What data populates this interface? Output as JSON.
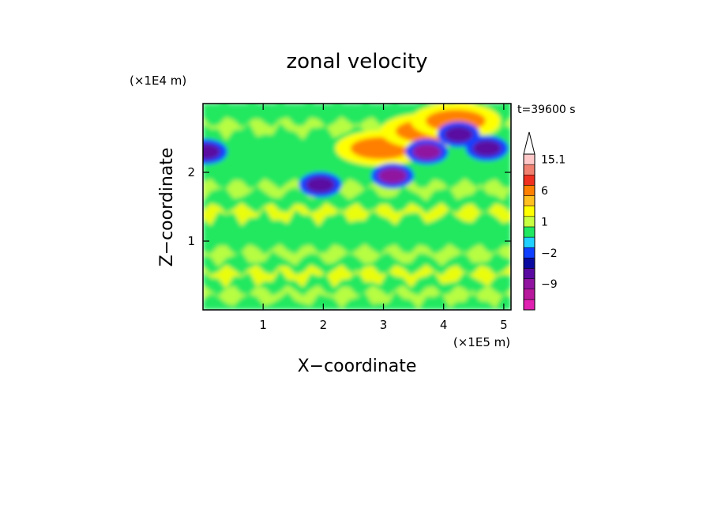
{
  "chart_data": {
    "type": "heatmap",
    "title": "zonal velocity",
    "xlabel": "X−coordinate",
    "ylabel": "Z−coordinate",
    "x_unit": "(×1E5 m)",
    "y_unit": "(×1E4 m)",
    "time_label": "t=39600 s",
    "xlim": [
      0,
      5.12
    ],
    "ylim": [
      0,
      3.0
    ],
    "xticks": [
      "1",
      "2",
      "3",
      "4",
      "5"
    ],
    "yticks": [
      "1",
      "2"
    ],
    "colorbar": {
      "labels": [
        "15.1",
        "6",
        "1",
        "−2",
        "−9"
      ],
      "levels": [
        -15,
        -12,
        -9,
        -6,
        -4,
        -2,
        -1,
        0,
        1,
        2,
        4,
        6,
        9,
        12,
        15.1
      ],
      "colors": [
        "#e020b0",
        "#b8189c",
        "#9014a0",
        "#5a0aa0",
        "#0a0aa0",
        "#1040ff",
        "#20d0ff",
        "#20e860",
        "#c8ff40",
        "#ffff00",
        "#ffc020",
        "#ff8000",
        "#f03020",
        "#f08070",
        "#ffc8c8"
      ],
      "extend_max": true
    },
    "features": [
      {
        "kind": "jet",
        "sign": "positive",
        "x": 2.95,
        "z": 2.35,
        "value": 6
      },
      {
        "kind": "jet",
        "sign": "positive",
        "x": 3.7,
        "z": 2.6,
        "value": 6
      },
      {
        "kind": "jet",
        "sign": "positive",
        "x": 4.2,
        "z": 2.75,
        "value": 6
      },
      {
        "kind": "core",
        "sign": "negative",
        "x": 3.15,
        "z": 1.95,
        "value": -9
      },
      {
        "kind": "core",
        "sign": "negative",
        "x": 3.72,
        "z": 2.3,
        "value": -9
      },
      {
        "kind": "core",
        "sign": "negative",
        "x": 0.05,
        "z": 2.3,
        "value": -6
      },
      {
        "kind": "core",
        "sign": "negative",
        "x": 4.25,
        "z": 2.55,
        "value": -6
      },
      {
        "kind": "core",
        "sign": "negative",
        "x": 4.72,
        "z": 2.35,
        "value": -6
      },
      {
        "kind": "core",
        "sign": "negative",
        "x": 1.95,
        "z": 1.82,
        "value": -6
      }
    ]
  }
}
